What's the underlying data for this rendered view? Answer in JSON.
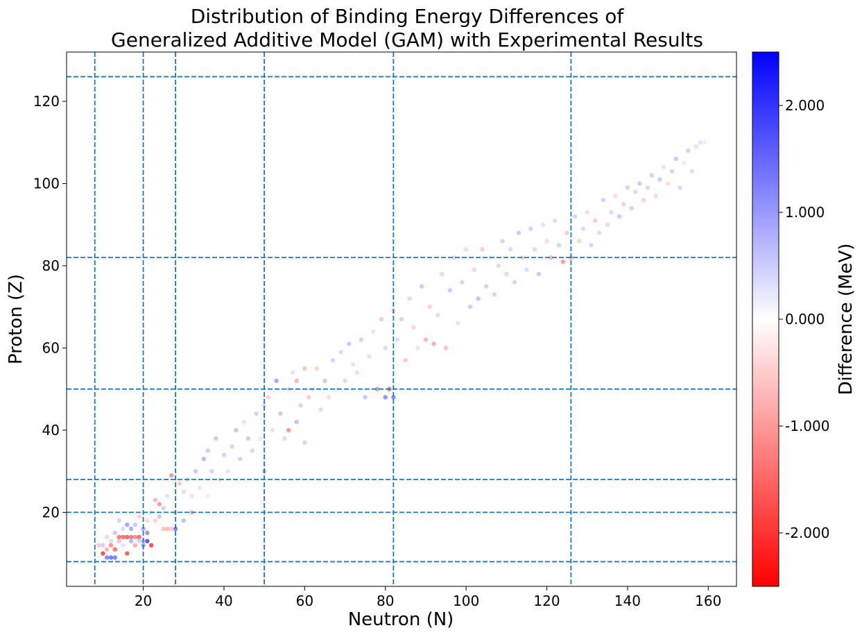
{
  "chart_data": {
    "type": "scatter",
    "title_line1": "Distribution of Binding Energy Differences of",
    "title_line2": "Generalized Additive Model (GAM) with Experimental Results",
    "xlabel": "Neutron (N)",
    "ylabel": "Proton (Z)",
    "xlim": [
      1,
      167
    ],
    "ylim": [
      2,
      132
    ],
    "xticks": [
      20,
      40,
      60,
      80,
      100,
      120,
      140,
      160
    ],
    "yticks": [
      20,
      40,
      60,
      80,
      100,
      120
    ],
    "magic_lines_x": [
      8,
      20,
      28,
      50,
      82,
      126
    ],
    "magic_lines_y": [
      8,
      20,
      28,
      50,
      82,
      126
    ],
    "magic_line_color": "#1f77b4",
    "colorbar": {
      "label": "Difference (MeV)",
      "range": [
        -2.5,
        2.5
      ],
      "ticks": [
        2.0,
        1.0,
        0.0,
        -1.0,
        -2.0
      ],
      "tick_labels": [
        "2.000",
        "1.000",
        "0.000",
        "-1.000",
        "-2.000"
      ],
      "colormap": "bwr_reversed",
      "color_low": "#ff0000",
      "color_mid": "#ffffff",
      "color_high": "#0000ff"
    },
    "points": [
      [
        9,
        12,
        -0.6
      ],
      [
        10,
        10,
        -2.0
      ],
      [
        10,
        12,
        0.5
      ],
      [
        11,
        9,
        1.3
      ],
      [
        11,
        11,
        -0.8
      ],
      [
        11,
        14,
        -0.5
      ],
      [
        12,
        9,
        1.5
      ],
      [
        12,
        12,
        -1.2
      ],
      [
        12,
        13,
        0.4
      ],
      [
        13,
        9,
        1.4
      ],
      [
        13,
        11,
        -1.6
      ],
      [
        13,
        15,
        0.6
      ],
      [
        14,
        13,
        -0.7
      ],
      [
        14,
        14,
        -1.5
      ],
      [
        14,
        18,
        0.5
      ],
      [
        15,
        12,
        0.3
      ],
      [
        15,
        14,
        -1.6
      ],
      [
        15,
        16,
        0.4
      ],
      [
        16,
        10,
        -1.8
      ],
      [
        16,
        14,
        -1.7
      ],
      [
        16,
        17,
        1.0
      ],
      [
        17,
        13,
        0.8
      ],
      [
        17,
        14,
        -1.5
      ],
      [
        17,
        16,
        0.9
      ],
      [
        18,
        12,
        -0.9
      ],
      [
        18,
        14,
        -1.3
      ],
      [
        18,
        17,
        0.6
      ],
      [
        19,
        13,
        0.5
      ],
      [
        19,
        14,
        -1.6
      ],
      [
        19,
        19,
        -0.5
      ],
      [
        20,
        12,
        1.0
      ],
      [
        20,
        13,
        0.7
      ],
      [
        20,
        16,
        0.9
      ],
      [
        21,
        13,
        1.8
      ],
      [
        21,
        15,
        1.2
      ],
      [
        21,
        18,
        -0.4
      ],
      [
        22,
        12,
        -2.0
      ],
      [
        22,
        20,
        -0.3
      ],
      [
        23,
        18,
        -0.5
      ],
      [
        23,
        23,
        -0.8
      ],
      [
        24,
        19,
        0.6
      ],
      [
        24,
        22,
        -1.1
      ],
      [
        25,
        16,
        -0.7
      ],
      [
        25,
        21,
        0.5
      ],
      [
        26,
        16,
        -0.8
      ],
      [
        26,
        24,
        0.3
      ],
      [
        27,
        16,
        -0.6
      ],
      [
        27,
        29,
        -1.2
      ],
      [
        28,
        16,
        1.4
      ],
      [
        28,
        20,
        0.4
      ],
      [
        29,
        27,
        -0.6
      ],
      [
        30,
        18,
        0.7
      ],
      [
        30,
        25,
        -0.4
      ],
      [
        31,
        28,
        0.5
      ],
      [
        32,
        20,
        -0.9
      ],
      [
        32,
        24,
        0.3
      ],
      [
        33,
        30,
        0.6
      ],
      [
        34,
        26,
        -0.3
      ],
      [
        35,
        33,
        0.8
      ],
      [
        36,
        24,
        0.2
      ],
      [
        36,
        35,
        -0.7
      ],
      [
        37,
        30,
        0.5
      ],
      [
        38,
        38,
        0.6
      ],
      [
        39,
        28,
        -0.4
      ],
      [
        40,
        34,
        0.5
      ],
      [
        41,
        30,
        0.3
      ],
      [
        42,
        36,
        -0.6
      ],
      [
        43,
        40,
        0.7
      ],
      [
        44,
        33,
        0.5
      ],
      [
        45,
        42,
        -0.4
      ],
      [
        46,
        38,
        0.6
      ],
      [
        47,
        35,
        0.4
      ],
      [
        48,
        44,
        0.5
      ],
      [
        49,
        38,
        -0.3
      ],
      [
        50,
        30,
        0.8
      ],
      [
        50,
        46,
        0.4
      ],
      [
        51,
        48,
        -0.5
      ],
      [
        52,
        40,
        0.3
      ],
      [
        53,
        52,
        1.0
      ],
      [
        54,
        44,
        0.6
      ],
      [
        55,
        38,
        0.4
      ],
      [
        56,
        40,
        -1.2
      ],
      [
        56,
        50,
        -0.6
      ],
      [
        57,
        54,
        0.3
      ],
      [
        58,
        42,
        0.7
      ],
      [
        58,
        52,
        -0.8
      ],
      [
        59,
        46,
        0.5
      ],
      [
        60,
        37,
        0.5
      ],
      [
        60,
        55,
        -0.7
      ],
      [
        61,
        48,
        -0.6
      ],
      [
        62,
        50,
        0.3
      ],
      [
        63,
        55,
        -0.5
      ],
      [
        64,
        45,
        0.4
      ],
      [
        65,
        52,
        0.6
      ],
      [
        66,
        48,
        -0.4
      ],
      [
        67,
        57,
        0.5
      ],
      [
        68,
        50,
        0.3
      ],
      [
        69,
        59,
        0.4
      ],
      [
        70,
        52,
        -0.5
      ],
      [
        71,
        61,
        0.6
      ],
      [
        72,
        56,
        0.3
      ],
      [
        73,
        54,
        -0.4
      ],
      [
        74,
        62,
        0.5
      ],
      [
        75,
        48,
        0.6
      ],
      [
        76,
        58,
        -0.4
      ],
      [
        77,
        64,
        0.3
      ],
      [
        78,
        50,
        -1.2
      ],
      [
        79,
        67,
        -0.6
      ],
      [
        80,
        48,
        1.2
      ],
      [
        80,
        60,
        0.4
      ],
      [
        81,
        50,
        -1.5
      ],
      [
        82,
        48,
        1.3
      ],
      [
        82,
        69,
        -0.5
      ],
      [
        83,
        62,
        0.4
      ],
      [
        84,
        67,
        0.5
      ],
      [
        85,
        57,
        -0.6
      ],
      [
        86,
        72,
        0.4
      ],
      [
        87,
        65,
        -0.5
      ],
      [
        88,
        60,
        0.3
      ],
      [
        89,
        75,
        0.6
      ],
      [
        90,
        62,
        -0.8
      ],
      [
        91,
        70,
        -0.5
      ],
      [
        92,
        61,
        -0.9
      ],
      [
        93,
        68,
        0.4
      ],
      [
        94,
        78,
        -0.5
      ],
      [
        95,
        60,
        -0.7
      ],
      [
        96,
        74,
        0.6
      ],
      [
        97,
        82,
        0.4
      ],
      [
        98,
        66,
        -0.4
      ],
      [
        99,
        76,
        0.5
      ],
      [
        100,
        84,
        -0.4
      ],
      [
        101,
        70,
        0.6
      ],
      [
        102,
        79,
        -0.5
      ],
      [
        103,
        72,
        0.7
      ],
      [
        104,
        84,
        -0.6
      ],
      [
        105,
        75,
        0.5
      ],
      [
        106,
        82,
        0.3
      ],
      [
        107,
        73,
        -0.6
      ],
      [
        108,
        80,
        0.4
      ],
      [
        109,
        86,
        0.5
      ],
      [
        110,
        78,
        -0.5
      ],
      [
        111,
        84,
        0.4
      ],
      [
        112,
        76,
        0.5
      ],
      [
        113,
        88,
        0.6
      ],
      [
        114,
        82,
        -0.6
      ],
      [
        115,
        79,
        0.4
      ],
      [
        116,
        89,
        0.5
      ],
      [
        117,
        84,
        -0.5
      ],
      [
        118,
        78,
        0.6
      ],
      [
        119,
        90,
        0.3
      ],
      [
        120,
        86,
        -0.4
      ],
      [
        121,
        82,
        -0.8
      ],
      [
        122,
        91,
        0.4
      ],
      [
        123,
        85,
        0.5
      ],
      [
        124,
        81,
        -1.1
      ],
      [
        125,
        88,
        -0.6
      ],
      [
        126,
        82,
        -0.9
      ],
      [
        127,
        92,
        0.5
      ],
      [
        128,
        86,
        -0.5
      ],
      [
        129,
        89,
        0.4
      ],
      [
        130,
        93,
        -0.4
      ],
      [
        131,
        85,
        0.5
      ],
      [
        132,
        91,
        -0.6
      ],
      [
        133,
        88,
        0.4
      ],
      [
        134,
        96,
        0.5
      ],
      [
        135,
        90,
        -0.5
      ],
      [
        136,
        93,
        0.4
      ],
      [
        137,
        97,
        -0.4
      ],
      [
        138,
        92,
        0.6
      ],
      [
        139,
        95,
        -0.5
      ],
      [
        140,
        99,
        0.5
      ],
      [
        141,
        94,
        -0.6
      ],
      [
        142,
        98,
        0.4
      ],
      [
        143,
        100,
        0.6
      ],
      [
        144,
        96,
        -0.5
      ],
      [
        145,
        99,
        0.4
      ],
      [
        146,
        102,
        0.5
      ],
      [
        147,
        97,
        -0.4
      ],
      [
        148,
        101,
        0.6
      ],
      [
        149,
        104,
        0.3
      ],
      [
        150,
        100,
        -0.4
      ],
      [
        151,
        103,
        0.5
      ],
      [
        152,
        106,
        0.6
      ],
      [
        153,
        99,
        0.4
      ],
      [
        154,
        105,
        -0.3
      ],
      [
        155,
        108,
        0.5
      ],
      [
        156,
        103,
        0.4
      ],
      [
        157,
        109,
        -0.4
      ],
      [
        158,
        110,
        0.3
      ],
      [
        159,
        110,
        0.2
      ]
    ],
    "point_opacity": 0.85
  }
}
